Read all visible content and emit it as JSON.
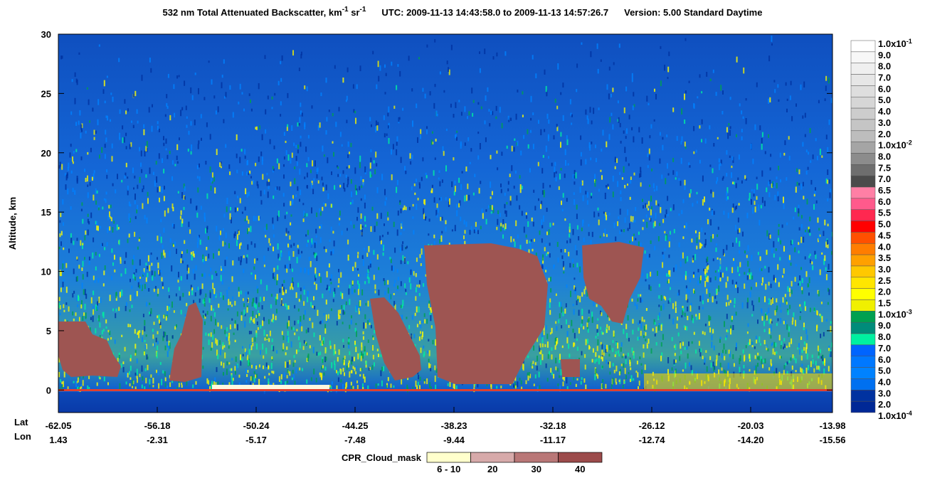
{
  "chart_data": {
    "type": "heatmap",
    "title": {
      "main": "532 nm Total Attenuated Backscatter, km",
      "sup1": "-1",
      "mid": " sr",
      "sup2": "-1",
      "utc": "UTC:  2009-11-13 14:43:58.0  to  2009-11-13 14:57:26.7",
      "version": "Version: 5.00  Standard  Daytime"
    },
    "ylabel": "Altitude, km",
    "ylim": [
      -1.9,
      30
    ],
    "yticks": [
      0,
      5,
      10,
      15,
      20,
      25,
      30
    ],
    "x_row_labels": [
      "Lat",
      "Lon"
    ],
    "lat": [
      "-62.05",
      "-56.18",
      "-50.24",
      "-44.25",
      "-38.23",
      "-32.18",
      "-26.12",
      "-20.03",
      "-13.98"
    ],
    "lon": [
      "1.43",
      "-2.31",
      "-5.17",
      "-7.48",
      "-9.44",
      "-11.17",
      "-12.74",
      "-14.20",
      "-15.56"
    ],
    "colorbar": {
      "labels": [
        {
          "text": "1.0x10",
          "sup": "-1"
        },
        "9.0",
        "8.0",
        "7.0",
        "6.0",
        "5.0",
        "4.0",
        "3.0",
        "2.0",
        {
          "text": "1.0x10",
          "sup": "-2"
        },
        "8.0",
        "7.5",
        "7.0",
        "6.5",
        "6.0",
        "5.5",
        "5.0",
        "4.5",
        "4.0",
        "3.5",
        "3.0",
        "2.5",
        "2.0",
        "1.5",
        {
          "text": "1.0x10",
          "sup": "-3"
        },
        "9.0",
        "8.0",
        "7.0",
        "6.0",
        "5.0",
        "4.0",
        "3.0",
        "2.0",
        {
          "text": "1.0x10",
          "sup": "-4"
        }
      ],
      "colors": [
        "#ffffff",
        "#f7f7f7",
        "#efefef",
        "#e6e6e6",
        "#dedede",
        "#d6d6d6",
        "#cdcdcd",
        "#c5c5c5",
        "#bdbdbd",
        "#a5a5a5",
        "#8c8c8c",
        "#6e6e6e",
        "#4b4b4b",
        "#ff7fa5",
        "#ff5a8c",
        "#ff2850",
        "#ff0000",
        "#ff5000",
        "#ff7d00",
        "#ffa000",
        "#ffc800",
        "#ffe600",
        "#ffff00",
        "#f0f000",
        "#00a050",
        "#008c7a",
        "#00f0a0",
        "#0064ff",
        "#0078ff",
        "#0082ff",
        "#0070f0",
        "#0032a0",
        "#002896"
      ]
    },
    "cpr_legend": {
      "title": "CPR_Cloud_mask",
      "labels": [
        "6 - 10",
        "20",
        "30",
        "40"
      ],
      "colors": [
        "#ffffcc",
        "#d7aaaa",
        "#b97777",
        "#9c4b4b"
      ]
    }
  }
}
